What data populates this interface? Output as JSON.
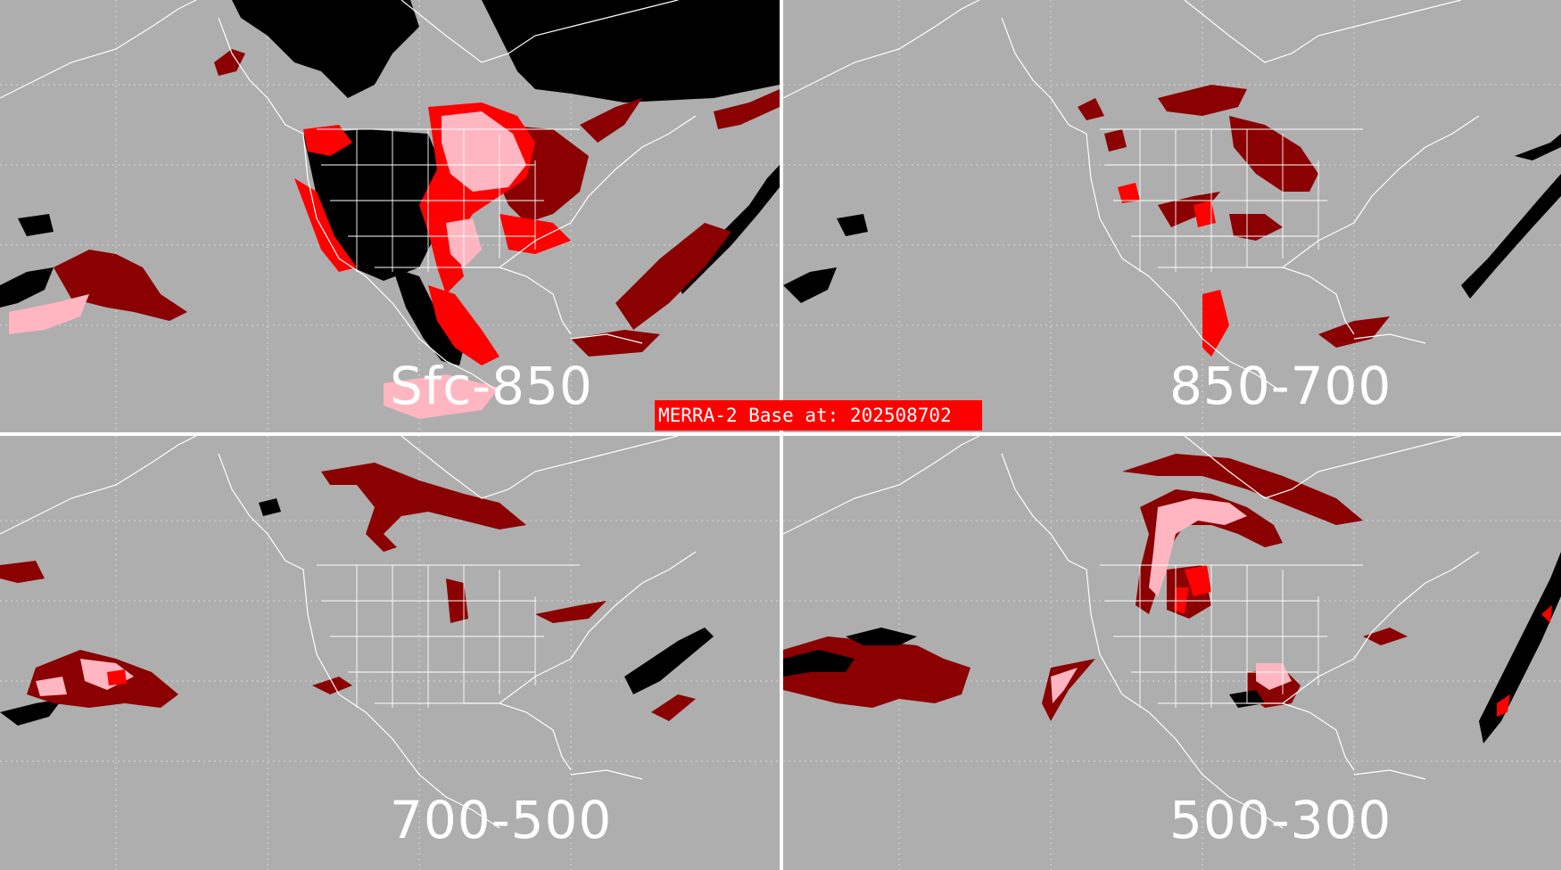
{
  "banner": {
    "text": "MERRA-2 Base at: 202508702"
  },
  "colors": {
    "background": "#aeaeae",
    "coastline": "#ffffff",
    "gridline": "#d8d8d8",
    "black_category": "#000000",
    "dark_red_category": "#8b0000",
    "red_category": "#ff0000",
    "pink_category": "#ffb6c1"
  },
  "panels": [
    {
      "id": "sfc-850",
      "label": "Sfc-850"
    },
    {
      "id": "850-700",
      "label": "850-700"
    },
    {
      "id": "700-500",
      "label": "700-500"
    },
    {
      "id": "500-300",
      "label": "500-300"
    }
  ]
}
